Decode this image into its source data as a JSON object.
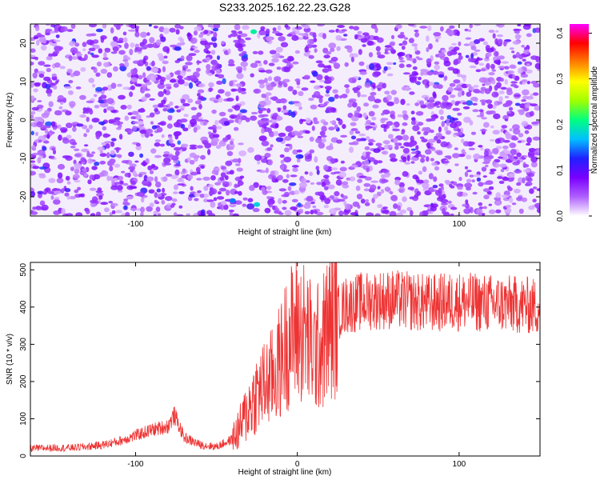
{
  "title": "S233.2025.162.22.23.G28",
  "chart_data": [
    {
      "type": "heatmap",
      "xlabel": "Height of straight line (km)",
      "ylabel": "Frequency (Hz)",
      "xlim": [
        -165,
        150
      ],
      "ylim": [
        -25,
        25
      ],
      "x_ticks": [
        -100,
        0,
        100
      ],
      "y_ticks": [
        -20,
        -10,
        0,
        10,
        20
      ],
      "colorbar": {
        "label": "Normalized spectral amplitude",
        "range": [
          0.0,
          0.42
        ],
        "ticks": [
          0.0,
          0.1,
          0.2,
          0.3,
          0.4
        ],
        "colors": [
          "#ffffff",
          "#b060ff",
          "#7a00ff",
          "#2020ff",
          "#00c0ff",
          "#00ff80",
          "#a0ff00",
          "#ffff00",
          "#ff8000",
          "#ff0000",
          "#ff00ff"
        ]
      },
      "background_level": 0.05,
      "notable_features": [
        {
          "x": -28,
          "y": 0,
          "value": 0.0,
          "note": "low-amplitude vertical band"
        },
        {
          "x": -25,
          "y": -22,
          "value": 0.18
        },
        {
          "x": -27,
          "y": 23,
          "value": 0.2
        },
        {
          "x": -40,
          "y": -21,
          "value": 0.15
        }
      ]
    },
    {
      "type": "line",
      "xlabel": "Height of straight line (km)",
      "ylabel": "SNR (10 * v/v)",
      "xlim": [
        -165,
        150
      ],
      "ylim": [
        0,
        520
      ],
      "x_ticks": [
        -100,
        0,
        100
      ],
      "y_ticks": [
        0,
        100,
        200,
        300,
        400,
        500
      ],
      "grid": false,
      "series": [
        {
          "color": "#ee3333",
          "x": [
            -165,
            -150,
            -140,
            -130,
            -120,
            -110,
            -100,
            -90,
            -80,
            -76,
            -70,
            -60,
            -50,
            -40,
            -35,
            -30,
            -25,
            -20,
            -15,
            -10,
            -7,
            -5,
            0,
            5,
            10,
            15,
            20,
            25,
            30,
            40,
            50,
            60,
            80,
            100,
            120,
            140,
            150
          ],
          "y": [
            20,
            22,
            22,
            25,
            30,
            40,
            55,
            70,
            80,
            110,
            50,
            30,
            25,
            45,
            80,
            130,
            170,
            190,
            215,
            260,
            300,
            320,
            340,
            330,
            280,
            300,
            350,
            385,
            405,
            415,
            420,
            420,
            410,
            415,
            410,
            405,
            400
          ]
        }
      ]
    }
  ]
}
